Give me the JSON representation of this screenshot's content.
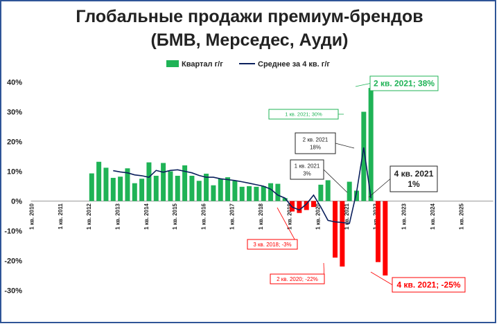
{
  "title_line1": "Глобальные продажи премиум-брендов",
  "title_line2": "(БМВ, Мерседес, Ауди)",
  "chart_data": {
    "type": "bar",
    "ylim": [
      -30,
      40
    ],
    "yticks": [
      "40%",
      "30%",
      "20%",
      "10%",
      "0%",
      "-10%",
      "-20%",
      "-30%"
    ],
    "ytick_values": [
      40,
      30,
      20,
      10,
      0,
      -10,
      -20,
      -30
    ],
    "year_labels": [
      "1 кв. 2010",
      "1 кв. 2011",
      "1 кв. 2012",
      "1 кв. 2013",
      "1 кв. 2014",
      "1 кв. 2015",
      "1 кв. 2016",
      "1 кв. 2017",
      "1 кв. 2018",
      "1 кв. 2019",
      "1 кв. 2020",
      "1 кв. 2021",
      "1 кв. 2022",
      "1 кв. 2023",
      "1 кв. 2024",
      "1 кв. 2025"
    ],
    "legend": {
      "bars": "Квартал г/г",
      "line": "Среднее за 4 кв. г/г"
    },
    "colors": {
      "positive": "#1fb356",
      "negative": "#ff0000",
      "line": "#0a1f5c",
      "frame": "#2f5597"
    },
    "bars_start_quarter": 8,
    "quarterly_yoy": [
      9.3,
      13.2,
      11.2,
      7.8,
      8.2,
      11.0,
      6.0,
      7.5,
      13.0,
      8.5,
      12.8,
      10.0,
      8.5,
      12.0,
      8.5,
      6.8,
      9.2,
      5.3,
      7.5,
      8.0,
      6.8,
      4.8,
      5.0,
      4.8,
      5.0,
      6.0,
      5.8,
      1.0,
      -3.5,
      -4.0,
      -3.0,
      -2.0,
      5.5,
      7.0,
      -19.0,
      -22.0,
      6.5,
      3.5,
      30.0,
      38.0,
      -20.5,
      -25.0
    ],
    "avg_start_quarter": 11,
    "avg_4q_yoy": [
      10.2,
      9.8,
      9.5,
      8.8,
      8.5,
      8.0,
      10.3,
      9.7,
      10.3,
      10.5,
      10.0,
      9.5,
      8.6,
      8.0,
      8.0,
      7.5,
      7.2,
      6.9,
      6.5,
      6.0,
      5.5,
      5.0,
      4.0,
      2.0,
      1.0,
      -2.0,
      -3.0,
      -1.0,
      2.0,
      -2.0,
      -6.5,
      -7.0,
      -7.2,
      -7.5,
      3.0,
      18.0,
      1.0
    ],
    "annotations": [
      {
        "text": "2 кв. 2021; 38%",
        "color": "#1fb356"
      },
      {
        "text": "1 кв. 2021; 30%",
        "color": "#1fb356"
      },
      {
        "text": "2 кв. 2021\n18%",
        "color": "#222222"
      },
      {
        "text": "1 кв. 2021\n3%",
        "color": "#222222"
      },
      {
        "text": "4 кв. 2021\n1%",
        "color": "#222222"
      },
      {
        "text": "3 кв. 2018; -3%",
        "color": "#ff0000"
      },
      {
        "text": "2 кв. 2020; -22%",
        "color": "#ff0000"
      },
      {
        "text": "4 кв. 2021; -25%",
        "color": "#ff0000"
      }
    ]
  }
}
